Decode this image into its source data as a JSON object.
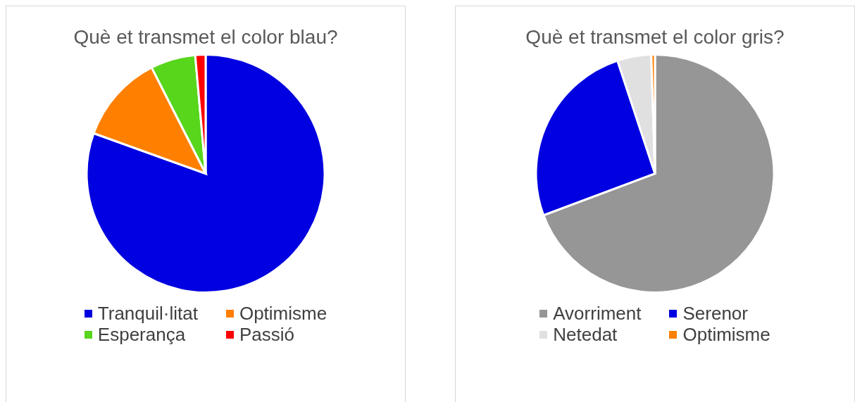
{
  "chart_data": [
    {
      "type": "pie",
      "title": "Què et transmet el color blau?",
      "categories": [
        "Tranquil·litat",
        "Optimisme",
        "Esperança",
        "Passió"
      ],
      "values": [
        80.5,
        12,
        6.1,
        1.4
      ],
      "colors": [
        "#0000e0",
        "#ff8000",
        "#57d61c",
        "#ff0000"
      ],
      "legend": "bottom"
    },
    {
      "type": "pie",
      "title": "Què et transmet el color gris?",
      "categories": [
        "Avorriment",
        "Serenor",
        "Netedat",
        "Optimisme"
      ],
      "values": [
        69.3,
        25.6,
        4.6,
        0.5
      ],
      "colors": [
        "#969696",
        "#0000e0",
        "#e0e0e0",
        "#ff8000"
      ],
      "legend": "bottom"
    }
  ]
}
